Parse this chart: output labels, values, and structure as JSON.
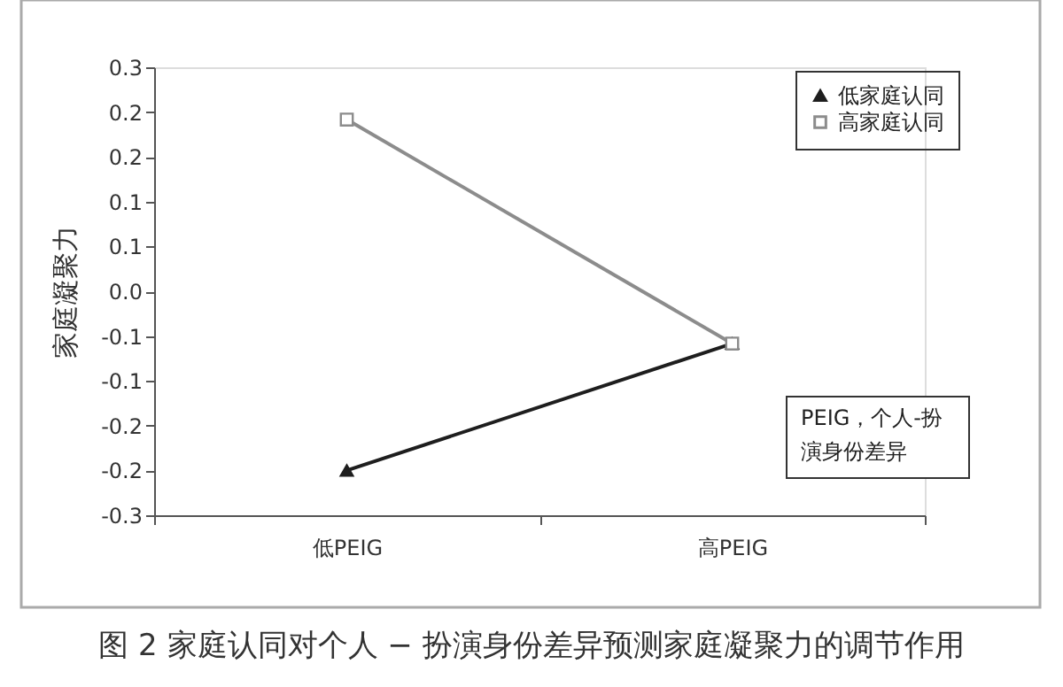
{
  "chart_data": {
    "type": "line",
    "categories": [
      "低PEIG",
      "高PEIG"
    ],
    "series": [
      {
        "name": "低家庭认同",
        "color": "#1e1e1e",
        "marker": "triangle",
        "values": [
          -0.24,
          -0.07
        ]
      },
      {
        "name": "高家庭认同",
        "color": "#8c8c8c",
        "marker": "square",
        "values": [
          0.23,
          -0.07
        ]
      }
    ],
    "ylabel": "家庭凝聚力",
    "ylim": [
      -0.3,
      0.3
    ],
    "yticks": [
      {
        "value": 0.3,
        "label": "0.3"
      },
      {
        "value": 0.24,
        "label": "0.2"
      },
      {
        "value": 0.18,
        "label": "0.2"
      },
      {
        "value": 0.12,
        "label": "0.1"
      },
      {
        "value": 0.06,
        "label": "0.1"
      },
      {
        "value": 0.0,
        "label": "0.0"
      },
      {
        "value": -0.06,
        "label": "-0.1"
      },
      {
        "value": -0.12,
        "label": "-0.1"
      },
      {
        "value": -0.18,
        "label": "-0.2"
      },
      {
        "value": -0.24,
        "label": "-0.2"
      },
      {
        "value": -0.3,
        "label": "-0.3"
      }
    ],
    "grid": false,
    "legend": "top right",
    "annotations": [
      "PEIG，个人-扮演身份差异",
      "图 2 家庭认同对个人 − 扮演身份差异预测家庭凝聚力的调节作用"
    ]
  }
}
